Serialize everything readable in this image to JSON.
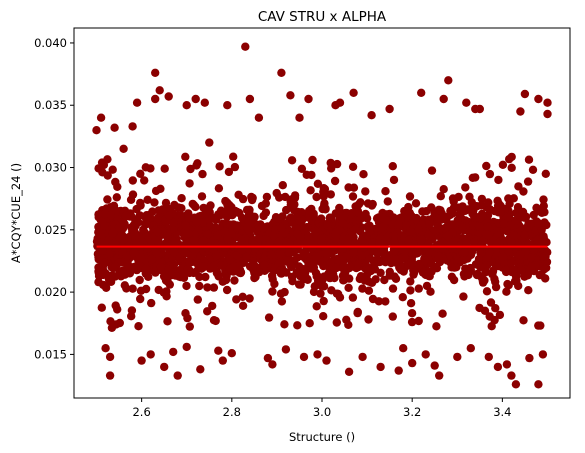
{
  "chart_data": {
    "type": "scatter",
    "title": "CAV STRU x ALPHA",
    "xlabel": "Structure ()",
    "ylabel": "A*CQY*CUE_24 ()",
    "xlim": [
      2.45,
      3.55
    ],
    "ylim": [
      0.0115,
      0.0412
    ],
    "xticks": [
      "2.6",
      "2.8",
      "3.0",
      "3.2",
      "3.4"
    ],
    "xtick_values": [
      2.6,
      2.8,
      3.0,
      3.2,
      3.4
    ],
    "yticks": [
      "0.015",
      "0.020",
      "0.025",
      "0.030",
      "0.035",
      "0.040"
    ],
    "ytick_values": [
      0.015,
      0.02,
      0.025,
      0.03,
      0.035,
      0.04
    ],
    "grid": false,
    "series": [
      {
        "color": "#8b0000",
        "dense_band": {
          "x": [
            2.5,
            3.5
          ],
          "y": [
            0.0195,
            0.0285
          ]
        },
        "points": [
          [
            2.5,
            0.033
          ],
          [
            2.51,
            0.034
          ],
          [
            2.52,
            0.0155
          ],
          [
            2.53,
            0.0148
          ],
          [
            2.53,
            0.0133
          ],
          [
            2.54,
            0.0332
          ],
          [
            2.56,
            0.0315
          ],
          [
            2.58,
            0.0333
          ],
          [
            2.59,
            0.0352
          ],
          [
            2.6,
            0.0145
          ],
          [
            2.62,
            0.015
          ],
          [
            2.63,
            0.0376
          ],
          [
            2.63,
            0.0355
          ],
          [
            2.64,
            0.0362
          ],
          [
            2.65,
            0.014
          ],
          [
            2.66,
            0.0357
          ],
          [
            2.67,
            0.0152
          ],
          [
            2.68,
            0.0133
          ],
          [
            2.7,
            0.035
          ],
          [
            2.7,
            0.0156
          ],
          [
            2.72,
            0.0355
          ],
          [
            2.73,
            0.0138
          ],
          [
            2.74,
            0.0352
          ],
          [
            2.75,
            0.032
          ],
          [
            2.77,
            0.0153
          ],
          [
            2.78,
            0.0145
          ],
          [
            2.79,
            0.035
          ],
          [
            2.8,
            0.0151
          ],
          [
            2.83,
            0.0397
          ],
          [
            2.84,
            0.0355
          ],
          [
            2.86,
            0.034
          ],
          [
            2.88,
            0.0147
          ],
          [
            2.89,
            0.0142
          ],
          [
            2.91,
            0.0376
          ],
          [
            2.92,
            0.0154
          ],
          [
            2.93,
            0.0358
          ],
          [
            2.95,
            0.034
          ],
          [
            2.96,
            0.0148
          ],
          [
            2.97,
            0.0355
          ],
          [
            2.99,
            0.015
          ],
          [
            3.01,
            0.0145
          ],
          [
            3.03,
            0.035
          ],
          [
            3.04,
            0.0352
          ],
          [
            3.06,
            0.0136
          ],
          [
            3.07,
            0.036
          ],
          [
            3.09,
            0.0148
          ],
          [
            3.11,
            0.0342
          ],
          [
            3.13,
            0.014
          ],
          [
            3.15,
            0.0347
          ],
          [
            3.17,
            0.0137
          ],
          [
            3.18,
            0.0155
          ],
          [
            3.2,
            0.0143
          ],
          [
            3.22,
            0.036
          ],
          [
            3.23,
            0.015
          ],
          [
            3.25,
            0.0141
          ],
          [
            3.26,
            0.0133
          ],
          [
            3.27,
            0.0355
          ],
          [
            3.28,
            0.037
          ],
          [
            3.3,
            0.0148
          ],
          [
            3.32,
            0.0352
          ],
          [
            3.33,
            0.0155
          ],
          [
            3.34,
            0.0347
          ],
          [
            3.35,
            0.0347
          ],
          [
            3.37,
            0.0148
          ],
          [
            3.39,
            0.014
          ],
          [
            3.41,
            0.0142
          ],
          [
            3.42,
            0.0133
          ],
          [
            3.43,
            0.0126
          ],
          [
            3.44,
            0.0345
          ],
          [
            3.45,
            0.0359
          ],
          [
            3.46,
            0.0147
          ],
          [
            3.48,
            0.0126
          ],
          [
            3.48,
            0.0355
          ],
          [
            3.49,
            0.015
          ],
          [
            3.5,
            0.0352
          ],
          [
            3.5,
            0.0343
          ]
        ]
      }
    ],
    "trend_line": {
      "color": "#ff0000",
      "x": [
        2.5,
        3.5
      ],
      "y": [
        0.02365,
        0.02365
      ]
    }
  }
}
